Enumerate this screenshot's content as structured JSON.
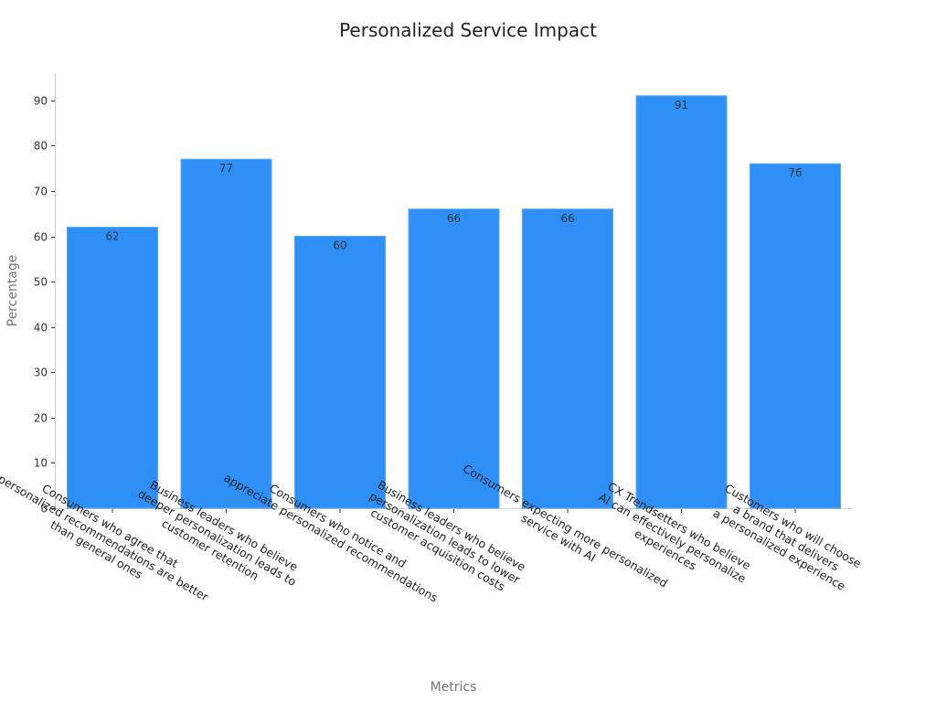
{
  "chart_data": {
    "type": "bar",
    "title": "Personalized Service Impact",
    "xlabel": "Metrics",
    "ylabel": "Percentage",
    "ylim": [
      0,
      96
    ],
    "yticks": [
      0,
      10,
      20,
      30,
      40,
      50,
      60,
      70,
      80,
      90
    ],
    "grid": false,
    "bar_color": "#2e90f7",
    "categories": [
      [
        "Consumers who agree that",
        "personalized recommendations are better",
        "than general ones"
      ],
      [
        "Business leaders who believe",
        "deeper personalization leads to",
        "customer retention"
      ],
      [
        "Consumers who notice and",
        "appreciate personalized recommendations"
      ],
      [
        "Business leaders who believe",
        "personalization leads to lower",
        "customer acquisition costs"
      ],
      [
        "Consumers expecting more personalized",
        "service with AI"
      ],
      [
        "CX Trendsetters who believe",
        "AI can effectively personalize",
        "experiences"
      ],
      [
        "Customers who will choose",
        "a brand that delivers",
        "a personalized experience"
      ]
    ],
    "values": [
      62,
      77,
      60,
      66,
      66,
      91,
      76
    ]
  }
}
